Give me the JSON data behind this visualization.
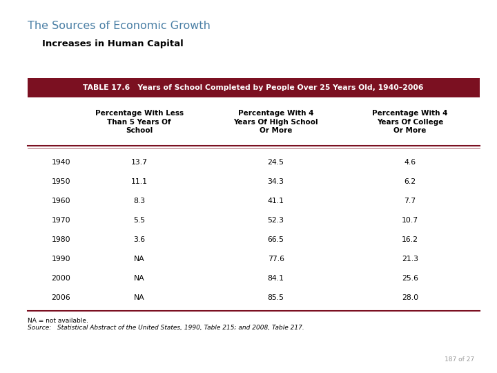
{
  "main_title": "The Sources of Economic Growth",
  "subtitle": "Increases in Human Capital",
  "table_header": "TABLE 17.6   Years of School Completed by People Over 25 Years Old, 1940–2006",
  "col_headers": [
    "",
    "Percentage With Less\nThan 5 Years Of\nSchool",
    "Percentage With 4\nYears Of High School\nOr More",
    "Percentage With 4\nYears Of College\nOr More"
  ],
  "rows": [
    [
      "1940",
      "13.7",
      "24.5",
      "4.6"
    ],
    [
      "1950",
      "11.1",
      "34.3",
      "6.2"
    ],
    [
      "1960",
      "8.3",
      "41.1",
      "7.7"
    ],
    [
      "1970",
      "5.5",
      "52.3",
      "10.7"
    ],
    [
      "1980",
      "3.6",
      "66.5",
      "16.2"
    ],
    [
      "1990",
      "NA",
      "77.6",
      "21.3"
    ],
    [
      "2000",
      "NA",
      "84.1",
      "25.6"
    ],
    [
      "2006",
      "NA",
      "85.5",
      "28.0"
    ]
  ],
  "footnote_na": "NA = not available.",
  "footnote_source": "Source:   Statistical Abstract of the United States, 1990, Table 215; and 2008, Table 217.",
  "page_number": "187 of 27",
  "header_bg_color": "#7B1021",
  "header_text_color": "#FFFFFF",
  "main_title_color": "#4A7FA5",
  "subtitle_color": "#000000",
  "bg_color": "#FFFFFF",
  "table_text_color": "#000000",
  "row_line_color": "#7B1021"
}
